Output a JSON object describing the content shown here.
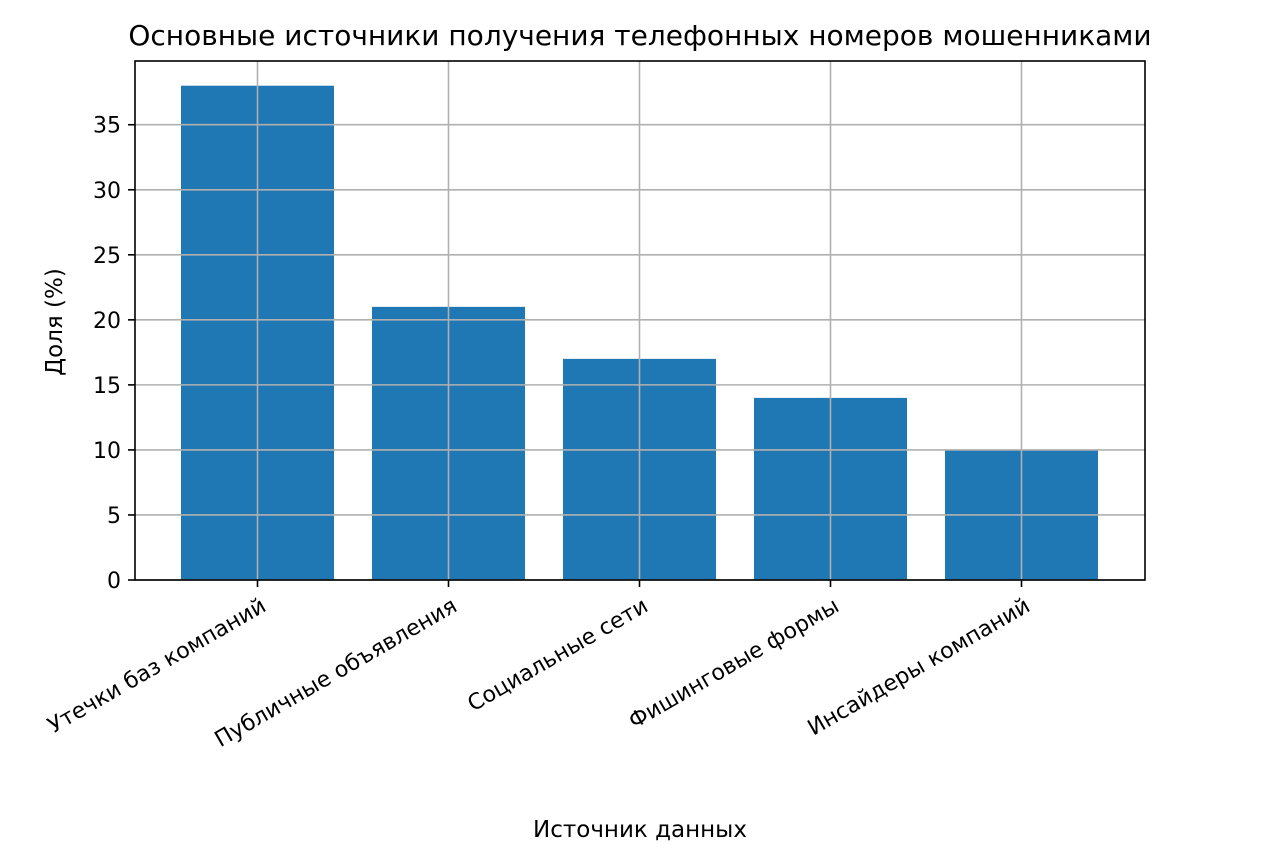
{
  "chart_data": {
    "type": "bar",
    "title": "Основные источники получения телефонных номеров мошенниками",
    "xlabel": "Источник данных",
    "ylabel": "Доля (%)",
    "categories": [
      "Утечки баз компаний",
      "Публичные объявления",
      "Социальные сети",
      "Фишинговые формы",
      "Инсайдеры компаний"
    ],
    "values": [
      38,
      21,
      17,
      14,
      10
    ],
    "ylim": [
      0,
      39.9
    ],
    "yticks": [
      0,
      5,
      10,
      15,
      20,
      25,
      30,
      35
    ],
    "grid": true,
    "colors": {
      "bar": "#1f77b4"
    }
  }
}
